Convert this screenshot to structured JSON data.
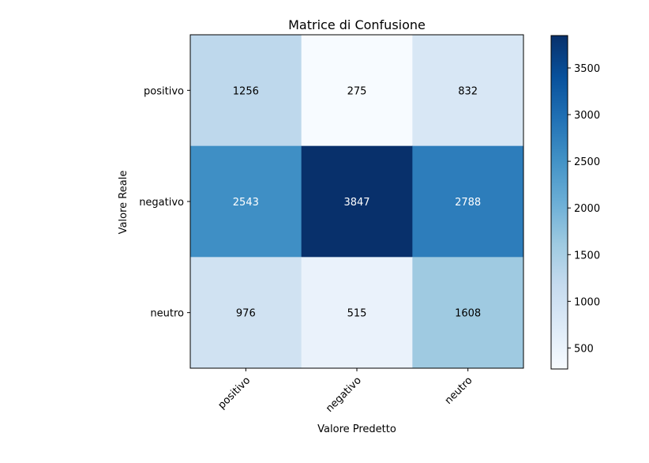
{
  "chart_data": {
    "type": "heatmap",
    "title": "Matrice di Confusione",
    "xlabel": "Valore Predetto",
    "ylabel": "Valore Reale",
    "x_categories": [
      "positivo",
      "negativo",
      "neutro"
    ],
    "y_categories": [
      "positivo",
      "negativo",
      "neutro"
    ],
    "values": [
      [
        1256,
        275,
        832
      ],
      [
        2543,
        3847,
        2788
      ],
      [
        976,
        515,
        1608
      ]
    ],
    "colormap": "Blues",
    "color_range": [
      275,
      3847
    ],
    "colorbar_ticks": [
      500,
      1000,
      1500,
      2000,
      2500,
      3000,
      3500
    ],
    "colorbar_tick_labels": [
      "500",
      "1000",
      "1500",
      "2000",
      "2500",
      "3000",
      "3500"
    ]
  }
}
